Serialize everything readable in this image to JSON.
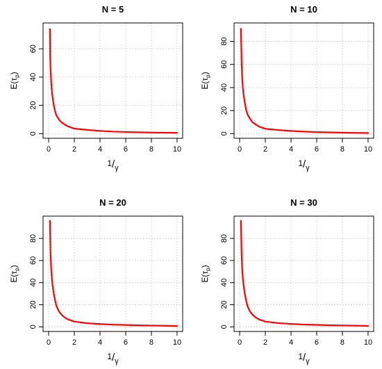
{
  "chart_data": [
    {
      "type": "line",
      "title": "N = 5",
      "xlabel": "1/γ",
      "ylabel": "E(τp)",
      "xlim": [
        0,
        10
      ],
      "ylim": [
        0,
        75
      ],
      "xticks": [
        "0",
        "2",
        "4",
        "6",
        "8",
        "10"
      ],
      "yticks": [
        "0",
        "20",
        "40",
        "60"
      ],
      "grid": true,
      "color": "#ff0000",
      "series": [
        {
          "x": [
            0.1,
            0.12,
            0.15,
            0.2,
            0.25,
            0.3,
            0.4,
            0.5,
            0.6,
            0.8,
            1.0,
            1.25,
            1.5,
            2.0,
            3.0,
            4.0,
            5.0,
            6.0,
            7.0,
            8.0,
            9.0,
            10.0
          ],
          "y": [
            74,
            55,
            45,
            36,
            30,
            26,
            20,
            16,
            13,
            10,
            8,
            6.5,
            5.2,
            3.6,
            2.7,
            2.0,
            1.5,
            1.2,
            1.0,
            0.8,
            0.7,
            0.6
          ]
        }
      ]
    },
    {
      "type": "line",
      "title": "N = 10",
      "xlabel": "1/γ",
      "ylabel": "E(τp)",
      "xlim": [
        0,
        10
      ],
      "ylim": [
        0,
        92
      ],
      "xticks": [
        "0",
        "2",
        "4",
        "6",
        "8",
        "10"
      ],
      "yticks": [
        "0",
        "20",
        "40",
        "60",
        "80"
      ],
      "grid": true,
      "color": "#ff0000",
      "series": [
        {
          "x": [
            0.1,
            0.12,
            0.15,
            0.2,
            0.25,
            0.3,
            0.4,
            0.5,
            0.6,
            0.8,
            1.0,
            1.25,
            1.5,
            2.0,
            3.0,
            4.0,
            5.0,
            6.0,
            7.0,
            8.0,
            9.0,
            10.0
          ],
          "y": [
            91,
            80,
            62,
            48,
            40,
            34,
            27,
            21,
            17,
            13,
            10,
            8,
            6.2,
            4.3,
            3.2,
            2.4,
            1.8,
            1.4,
            1.1,
            0.9,
            0.7,
            0.6
          ]
        }
      ]
    },
    {
      "type": "line",
      "title": "N = 20",
      "xlabel": "1/γ",
      "ylabel": "E(τp)",
      "xlim": [
        0,
        10
      ],
      "ylim": [
        0,
        96
      ],
      "xticks": [
        "0",
        "2",
        "4",
        "6",
        "8",
        "10"
      ],
      "yticks": [
        "0",
        "20",
        "40",
        "60",
        "80"
      ],
      "grid": true,
      "color": "#ff0000",
      "series": [
        {
          "x": [
            0.1,
            0.12,
            0.15,
            0.2,
            0.25,
            0.3,
            0.4,
            0.5,
            0.6,
            0.8,
            1.0,
            1.25,
            1.5,
            2.0,
            3.0,
            4.0,
            5.0,
            6.0,
            7.0,
            8.0,
            9.0,
            10.0
          ],
          "y": [
            96,
            82,
            65,
            52,
            44,
            38,
            30,
            24,
            19,
            14,
            11,
            8.5,
            6.8,
            4.8,
            3.3,
            2.6,
            2.0,
            1.7,
            1.4,
            1.2,
            1.0,
            0.8
          ]
        }
      ]
    },
    {
      "type": "line",
      "title": "N = 30",
      "xlabel": "1/γ",
      "ylabel": "E(τp)",
      "xlim": [
        0,
        10
      ],
      "ylim": [
        0,
        96
      ],
      "xticks": [
        "0",
        "2",
        "4",
        "6",
        "8",
        "10"
      ],
      "yticks": [
        "0",
        "20",
        "40",
        "60",
        "80"
      ],
      "grid": true,
      "color": "#ff0000",
      "series": [
        {
          "x": [
            0.1,
            0.12,
            0.15,
            0.2,
            0.25,
            0.3,
            0.4,
            0.5,
            0.6,
            0.8,
            1.0,
            1.25,
            1.5,
            2.0,
            3.0,
            4.0,
            5.0,
            6.0,
            7.0,
            8.0,
            9.0,
            10.0
          ],
          "y": [
            96,
            84,
            66,
            52,
            44,
            38,
            30,
            24,
            19,
            14,
            11,
            8.5,
            6.8,
            4.8,
            3.4,
            2.7,
            2.1,
            1.8,
            1.5,
            1.3,
            1.1,
            0.9
          ]
        }
      ]
    }
  ]
}
